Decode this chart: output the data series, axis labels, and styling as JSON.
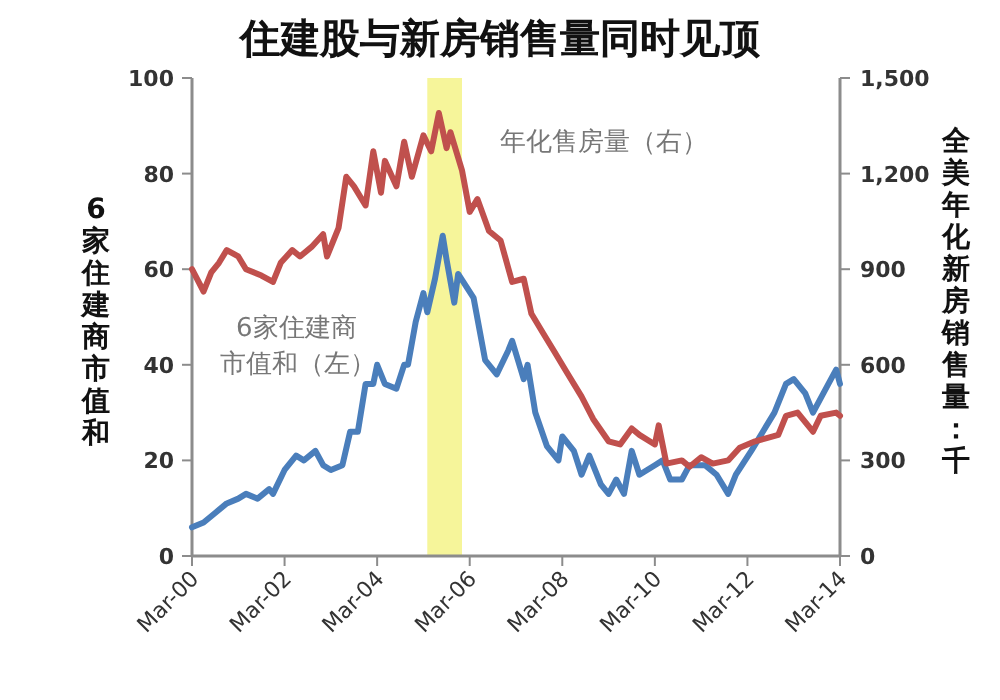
{
  "chart_data": {
    "type": "line",
    "title": "住建股与新房销售量同时见顶",
    "ylabel": "6家住建商市值和",
    "y2label": "全美年化新房销售量：千",
    "xlim": [
      "2000-03",
      "2014-03"
    ],
    "xticks": [
      {
        "value": "2000-03",
        "label": "Mar-00"
      },
      {
        "value": "2002-03",
        "label": "Mar-02"
      },
      {
        "value": "2004-03",
        "label": "Mar-04"
      },
      {
        "value": "2006-03",
        "label": "Mar-06"
      },
      {
        "value": "2008-03",
        "label": "Mar-08"
      },
      {
        "value": "2010-03",
        "label": "Mar-10"
      },
      {
        "value": "2012-03",
        "label": "Mar-12"
      },
      {
        "value": "2014-03",
        "label": "Mar-14"
      }
    ],
    "ylim": [
      0,
      100
    ],
    "yticks": [
      0,
      20,
      40,
      60,
      80,
      100
    ],
    "y2lim": [
      0,
      1500
    ],
    "y2ticks": [
      0,
      300,
      600,
      900,
      {
        "value": 1200,
        "label": "1,200"
      },
      {
        "value": 1500,
        "label": "1,500"
      }
    ],
    "grid": false,
    "legend": false,
    "marker": "none",
    "line_style": "solid",
    "bands": [
      {
        "axis": "x",
        "from": "2005-04",
        "to": "2006-01",
        "color": "#f6f59a"
      }
    ],
    "series": [
      {
        "name": "6家住建商市值和（左）",
        "color": "#4a7ebb",
        "x": [
          "2000-03",
          "2000-06",
          "2000-09",
          "2000-12",
          "2001-03",
          "2001-05",
          "2001-08",
          "2001-11",
          "2001-12",
          "2002-03",
          "2002-06",
          "2002-08",
          "2002-11",
          "2003-01",
          "2003-03",
          "2003-06",
          "2003-08",
          "2003-10",
          "2003-12",
          "2004-02",
          "2004-03",
          "2004-05",
          "2004-08",
          "2004-10",
          "2004-11",
          "2005-01",
          "2005-03",
          "2005-04",
          "2005-06",
          "2005-08",
          "2005-09",
          "2005-11",
          "2005-12",
          "2006-04",
          "2006-07",
          "2006-10",
          "2007-01",
          "2007-02",
          "2007-05",
          "2007-06",
          "2007-08",
          "2007-11",
          "2008-02",
          "2008-03",
          "2008-06",
          "2008-08",
          "2008-10",
          "2009-01",
          "2009-03",
          "2009-05",
          "2009-07",
          "2009-09",
          "2009-11",
          "2010-03",
          "2010-05",
          "2010-07",
          "2010-10",
          "2010-12",
          "2011-04",
          "2011-07",
          "2011-10",
          "2011-12",
          "2012-04",
          "2012-07",
          "2012-10",
          "2013-01",
          "2013-03",
          "2013-06",
          "2013-08",
          "2013-12",
          "2014-02",
          "2014-03"
        ],
        "values": [
          6,
          7,
          9,
          11,
          12,
          13,
          12,
          14,
          13,
          18,
          21,
          20,
          22,
          19,
          18,
          19,
          26,
          26,
          36,
          36,
          40,
          36,
          35,
          40,
          40,
          49,
          55,
          51,
          58,
          67,
          62,
          53,
          59,
          54,
          41,
          38,
          43,
          45,
          37,
          40,
          30,
          23,
          20,
          25,
          22,
          17,
          21,
          15,
          13,
          16,
          13,
          22,
          17,
          19,
          20,
          16,
          16,
          19,
          19,
          17,
          13,
          17,
          22,
          26,
          30,
          36,
          37,
          34,
          30,
          36,
          39,
          36
        ]
      },
      {
        "name": "年化售房量（右）",
        "color": "#c0504d",
        "axis": "y2",
        "x": [
          "2000-03",
          "2000-06",
          "2000-08",
          "2000-10",
          "2000-12",
          "2001-03",
          "2001-05",
          "2001-09",
          "2001-12",
          "2002-02",
          "2002-05",
          "2002-07",
          "2002-10",
          "2003-01",
          "2003-02",
          "2003-05",
          "2003-07",
          "2003-09",
          "2003-12",
          "2004-02",
          "2004-04",
          "2004-05",
          "2004-08",
          "2004-10",
          "2004-12",
          "2005-03",
          "2005-05",
          "2005-07",
          "2005-09",
          "2005-10",
          "2006-01",
          "2006-03",
          "2006-05",
          "2006-08",
          "2006-11",
          "2007-02",
          "2007-05",
          "2007-07",
          "2007-10",
          "2008-01",
          "2008-04",
          "2008-08",
          "2008-11",
          "2009-03",
          "2009-06",
          "2009-09",
          "2009-11",
          "2010-03",
          "2010-04",
          "2010-06",
          "2010-10",
          "2010-12",
          "2011-03",
          "2011-06",
          "2011-10",
          "2012-01",
          "2012-05",
          "2012-08",
          "2012-11",
          "2013-01",
          "2013-04",
          "2013-08",
          "2013-10",
          "2014-02",
          "2014-03"
        ],
        "values": [
          900,
          830,
          890,
          920,
          960,
          940,
          900,
          880,
          860,
          920,
          960,
          940,
          970,
          1010,
          940,
          1030,
          1190,
          1160,
          1100,
          1270,
          1140,
          1240,
          1160,
          1300,
          1190,
          1320,
          1270,
          1390,
          1280,
          1330,
          1210,
          1080,
          1120,
          1020,
          990,
          860,
          870,
          760,
          700,
          640,
          580,
          500,
          430,
          360,
          350,
          400,
          380,
          350,
          410,
          290,
          300,
          280,
          310,
          290,
          300,
          340,
          360,
          370,
          380,
          440,
          450,
          390,
          440,
          450,
          440
        ]
      }
    ]
  }
}
